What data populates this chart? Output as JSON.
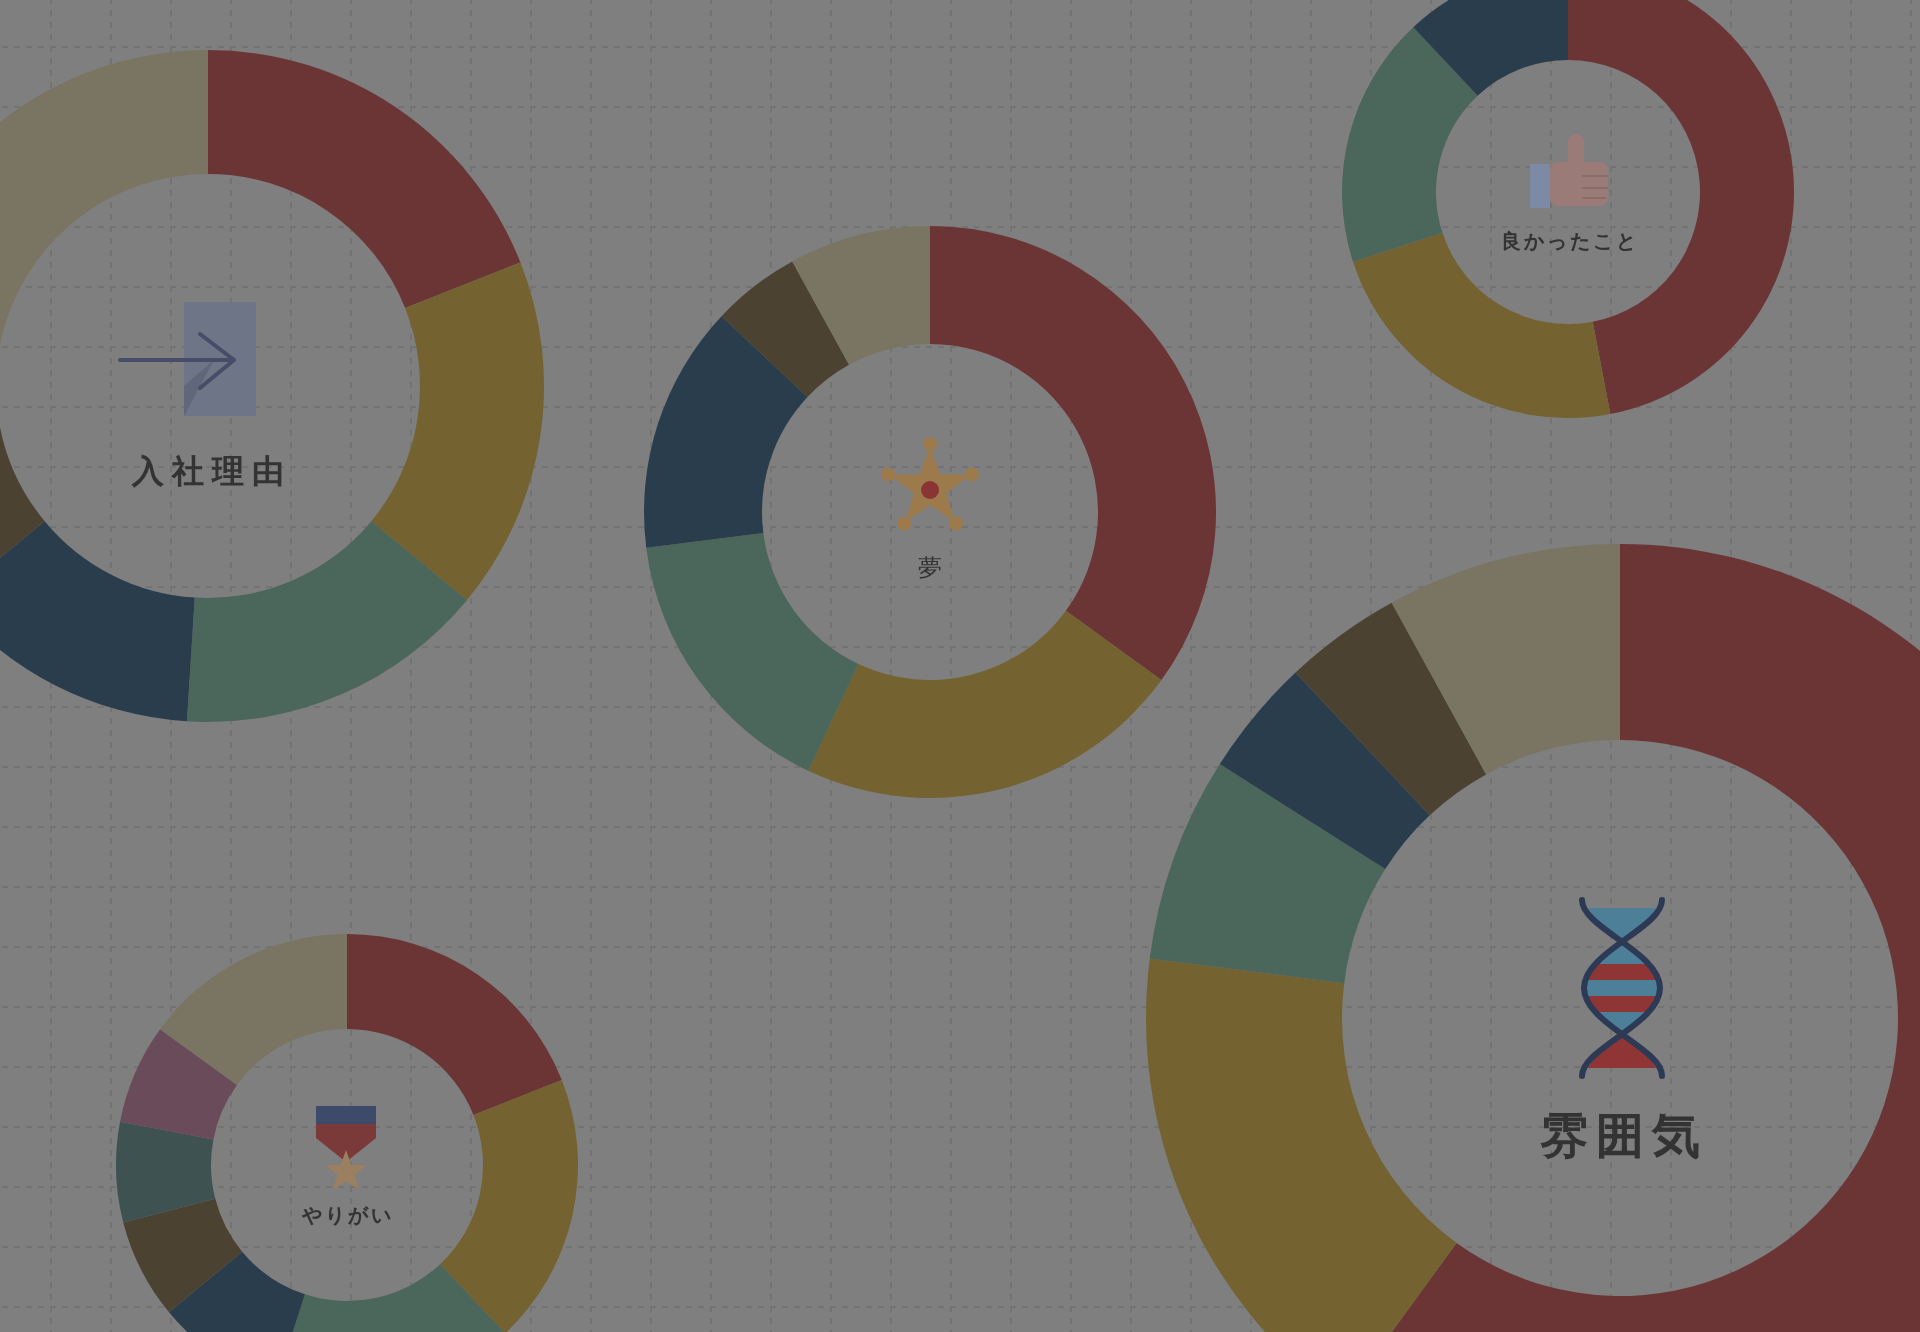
{
  "chart_data": [
    {
      "type": "donut",
      "title": "入社理由",
      "categories": [
        null,
        null,
        null,
        null,
        null,
        null
      ],
      "values": [
        19,
        17,
        15,
        13,
        9,
        27
      ],
      "colors": [
        "#6b3535",
        "#746331",
        "#4b665a",
        "#2a3d4c",
        "#4b4231",
        "#7a7462"
      ]
    },
    {
      "type": "donut",
      "title": "夢",
      "categories": [
        null,
        null,
        null,
        null,
        null,
        null
      ],
      "values": [
        35,
        22,
        16,
        14,
        5,
        8
      ],
      "colors": [
        "#6b3535",
        "#746331",
        "#4b665a",
        "#2a3d4c",
        "#4b4231",
        "#7a7462"
      ]
    },
    {
      "type": "donut",
      "title": "良かったこと",
      "categories": [
        null,
        null,
        null,
        null
      ],
      "values": [
        47,
        23,
        18,
        12
      ],
      "colors": [
        "#6b3535",
        "#746331",
        "#4b665a",
        "#2a3d4c"
      ]
    },
    {
      "type": "donut",
      "title": "やりがい",
      "categories": [
        null,
        null,
        null,
        null,
        null,
        null,
        null,
        null
      ],
      "values": [
        19,
        19,
        17,
        9,
        7,
        7,
        7,
        15
      ],
      "colors": [
        "#6b3535",
        "#746331",
        "#4b665a",
        "#2a3d4c",
        "#4b4231",
        "#3e5252",
        "#6a4b5a",
        "#7a7462"
      ]
    },
    {
      "type": "donut",
      "title": "雰囲気",
      "categories": [
        null,
        null,
        null,
        null,
        null,
        null
      ],
      "values": [
        60,
        17,
        7,
        4,
        4,
        8
      ],
      "colors": [
        "#6b3535",
        "#746331",
        "#4b665a",
        "#2a3d4c",
        "#4b4231",
        "#7a7462"
      ]
    }
  ]
}
